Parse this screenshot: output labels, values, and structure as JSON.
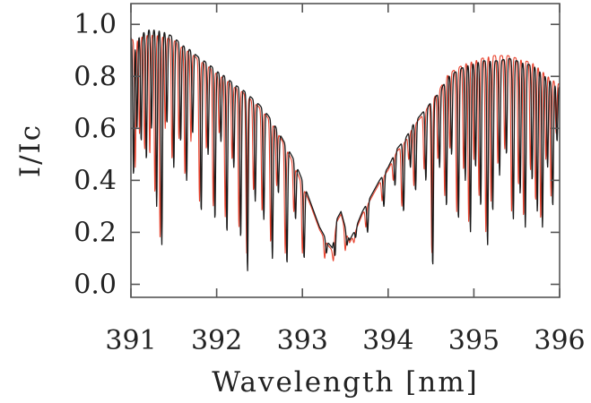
{
  "chart_data": {
    "type": "line",
    "title": "",
    "xlabel": "Wavelength [nm]",
    "ylabel": "I/Ic",
    "xlim": [
      391,
      396
    ],
    "ylim": [
      -0.05,
      1.08
    ],
    "x_ticks": [
      "391",
      "392",
      "393",
      "394",
      "395",
      "396"
    ],
    "y_ticks": [
      "0.0",
      "0.2",
      "0.4",
      "0.6",
      "0.8",
      "1.0"
    ],
    "grid": false,
    "legend": "none",
    "series": [
      {
        "color": "#1a1a1a",
        "envelope": [
          [
            391.0,
            0.95
          ],
          [
            391.1,
            0.96
          ],
          [
            391.2,
            0.98
          ],
          [
            391.3,
            0.98
          ],
          [
            391.4,
            0.97
          ],
          [
            391.5,
            0.95
          ],
          [
            391.6,
            0.92
          ],
          [
            391.7,
            0.9
          ],
          [
            391.8,
            0.87
          ],
          [
            391.9,
            0.85
          ],
          [
            392.0,
            0.82
          ],
          [
            392.1,
            0.8
          ],
          [
            392.2,
            0.77
          ],
          [
            392.3,
            0.75
          ],
          [
            392.4,
            0.72
          ],
          [
            392.5,
            0.69
          ],
          [
            392.6,
            0.65
          ],
          [
            392.7,
            0.6
          ],
          [
            392.8,
            0.54
          ],
          [
            392.9,
            0.48
          ],
          [
            393.0,
            0.4
          ],
          [
            393.1,
            0.31
          ],
          [
            393.2,
            0.22
          ],
          [
            393.3,
            0.16
          ],
          [
            393.35,
            0.14
          ],
          [
            393.4,
            0.25
          ],
          [
            393.45,
            0.28
          ],
          [
            393.5,
            0.22
          ],
          [
            393.55,
            0.17
          ],
          [
            393.6,
            0.2
          ],
          [
            393.7,
            0.28
          ],
          [
            393.8,
            0.34
          ],
          [
            393.9,
            0.4
          ],
          [
            394.0,
            0.45
          ],
          [
            394.1,
            0.52
          ],
          [
            394.2,
            0.56
          ],
          [
            394.3,
            0.62
          ],
          [
            394.4,
            0.66
          ],
          [
            394.5,
            0.7
          ],
          [
            394.6,
            0.74
          ],
          [
            394.7,
            0.8
          ],
          [
            394.8,
            0.82
          ],
          [
            394.9,
            0.84
          ],
          [
            395.0,
            0.85
          ],
          [
            395.1,
            0.86
          ],
          [
            395.2,
            0.86
          ],
          [
            395.3,
            0.86
          ],
          [
            395.4,
            0.87
          ],
          [
            395.5,
            0.86
          ],
          [
            395.6,
            0.85
          ],
          [
            395.7,
            0.84
          ],
          [
            395.8,
            0.81
          ],
          [
            395.9,
            0.78
          ],
          [
            396.0,
            0.76
          ]
        ],
        "absorption_lines": [
          [
            391.03,
            0.42
          ],
          [
            391.07,
            0.6
          ],
          [
            391.12,
            0.55
          ],
          [
            391.18,
            0.48
          ],
          [
            391.24,
            0.6
          ],
          [
            391.3,
            0.3
          ],
          [
            391.36,
            0.15
          ],
          [
            391.42,
            0.62
          ],
          [
            391.5,
            0.45
          ],
          [
            391.58,
            0.55
          ],
          [
            391.65,
            0.4
          ],
          [
            391.72,
            0.58
          ],
          [
            391.82,
            0.28
          ],
          [
            391.9,
            0.5
          ],
          [
            391.98,
            0.25
          ],
          [
            392.05,
            0.55
          ],
          [
            392.12,
            0.2
          ],
          [
            392.2,
            0.45
          ],
          [
            392.28,
            0.18
          ],
          [
            392.36,
            0.05
          ],
          [
            392.45,
            0.32
          ],
          [
            392.55,
            0.25
          ],
          [
            392.65,
            0.1
          ],
          [
            392.72,
            0.35
          ],
          [
            392.82,
            0.08
          ],
          [
            392.92,
            0.25
          ],
          [
            393.02,
            0.1
          ],
          [
            393.28,
            0.12
          ],
          [
            393.38,
            0.11
          ],
          [
            393.52,
            0.15
          ],
          [
            393.62,
            0.18
          ],
          [
            393.76,
            0.2
          ],
          [
            393.95,
            0.3
          ],
          [
            394.08,
            0.38
          ],
          [
            394.18,
            0.28
          ],
          [
            394.26,
            0.45
          ],
          [
            394.32,
            0.36
          ],
          [
            394.44,
            0.4
          ],
          [
            394.52,
            0.07
          ],
          [
            394.6,
            0.45
          ],
          [
            394.68,
            0.3
          ],
          [
            394.74,
            0.5
          ],
          [
            394.82,
            0.25
          ],
          [
            394.9,
            0.4
          ],
          [
            394.96,
            0.2
          ],
          [
            395.02,
            0.45
          ],
          [
            395.08,
            0.3
          ],
          [
            395.16,
            0.15
          ],
          [
            395.22,
            0.28
          ],
          [
            395.3,
            0.42
          ],
          [
            395.38,
            0.5
          ],
          [
            395.46,
            0.25
          ],
          [
            395.54,
            0.35
          ],
          [
            395.6,
            0.22
          ],
          [
            395.68,
            0.4
          ],
          [
            395.74,
            0.28
          ],
          [
            395.8,
            0.22
          ],
          [
            395.86,
            0.45
          ],
          [
            395.92,
            0.3
          ],
          [
            395.97,
            0.55
          ]
        ]
      },
      {
        "color": "#e8412c",
        "envelope": [
          [
            391.0,
            0.94
          ],
          [
            391.1,
            0.95
          ],
          [
            391.2,
            0.96
          ],
          [
            391.3,
            0.96
          ],
          [
            391.4,
            0.95
          ],
          [
            391.5,
            0.94
          ],
          [
            391.6,
            0.91
          ],
          [
            391.7,
            0.89
          ],
          [
            391.8,
            0.86
          ],
          [
            391.9,
            0.84
          ],
          [
            392.0,
            0.81
          ],
          [
            392.1,
            0.79
          ],
          [
            392.2,
            0.76
          ],
          [
            392.3,
            0.74
          ],
          [
            392.4,
            0.71
          ],
          [
            392.5,
            0.68
          ],
          [
            392.6,
            0.64
          ],
          [
            392.7,
            0.59
          ],
          [
            392.8,
            0.53
          ],
          [
            392.9,
            0.46
          ],
          [
            393.0,
            0.38
          ],
          [
            393.1,
            0.3
          ],
          [
            393.2,
            0.21
          ],
          [
            393.3,
            0.15
          ],
          [
            393.35,
            0.13
          ],
          [
            393.4,
            0.24
          ],
          [
            393.45,
            0.27
          ],
          [
            393.5,
            0.21
          ],
          [
            393.55,
            0.16
          ],
          [
            393.6,
            0.19
          ],
          [
            393.7,
            0.27
          ],
          [
            393.8,
            0.33
          ],
          [
            393.9,
            0.39
          ],
          [
            394.0,
            0.44
          ],
          [
            394.1,
            0.51
          ],
          [
            394.2,
            0.55
          ],
          [
            394.3,
            0.61
          ],
          [
            394.4,
            0.65
          ],
          [
            394.5,
            0.7
          ],
          [
            394.6,
            0.75
          ],
          [
            394.7,
            0.81
          ],
          [
            394.8,
            0.83
          ],
          [
            394.9,
            0.85
          ],
          [
            395.0,
            0.86
          ],
          [
            395.1,
            0.87
          ],
          [
            395.2,
            0.88
          ],
          [
            395.3,
            0.88
          ],
          [
            395.4,
            0.88
          ],
          [
            395.5,
            0.87
          ],
          [
            395.6,
            0.86
          ],
          [
            395.7,
            0.85
          ],
          [
            395.8,
            0.82
          ],
          [
            395.9,
            0.79
          ],
          [
            396.0,
            0.77
          ]
        ],
        "absorption_lines": [
          [
            391.05,
            0.45
          ],
          [
            391.1,
            0.58
          ],
          [
            391.16,
            0.52
          ],
          [
            391.22,
            0.5
          ],
          [
            391.28,
            0.35
          ],
          [
            391.34,
            0.18
          ],
          [
            391.4,
            0.6
          ],
          [
            391.48,
            0.48
          ],
          [
            391.56,
            0.56
          ],
          [
            391.63,
            0.42
          ],
          [
            391.7,
            0.55
          ],
          [
            391.8,
            0.32
          ],
          [
            391.88,
            0.52
          ],
          [
            391.96,
            0.3
          ],
          [
            392.03,
            0.58
          ],
          [
            392.1,
            0.26
          ],
          [
            392.18,
            0.48
          ],
          [
            392.26,
            0.22
          ],
          [
            392.35,
            0.12
          ],
          [
            392.43,
            0.36
          ],
          [
            392.53,
            0.28
          ],
          [
            392.63,
            0.16
          ],
          [
            392.7,
            0.38
          ],
          [
            392.8,
            0.12
          ],
          [
            392.9,
            0.28
          ],
          [
            393.0,
            0.12
          ],
          [
            393.26,
            0.1
          ],
          [
            393.36,
            0.09
          ],
          [
            393.5,
            0.13
          ],
          [
            393.6,
            0.16
          ],
          [
            393.74,
            0.22
          ],
          [
            393.93,
            0.32
          ],
          [
            394.06,
            0.4
          ],
          [
            394.16,
            0.3
          ],
          [
            394.24,
            0.48
          ],
          [
            394.3,
            0.38
          ],
          [
            394.42,
            0.44
          ],
          [
            394.51,
            0.12
          ],
          [
            394.58,
            0.48
          ],
          [
            394.66,
            0.34
          ],
          [
            394.72,
            0.52
          ],
          [
            394.8,
            0.28
          ],
          [
            394.88,
            0.44
          ],
          [
            394.94,
            0.24
          ],
          [
            395.0,
            0.48
          ],
          [
            395.06,
            0.34
          ],
          [
            395.14,
            0.2
          ],
          [
            395.2,
            0.32
          ],
          [
            395.28,
            0.46
          ],
          [
            395.36,
            0.52
          ],
          [
            395.44,
            0.28
          ],
          [
            395.52,
            0.38
          ],
          [
            395.58,
            0.26
          ],
          [
            395.66,
            0.44
          ],
          [
            395.72,
            0.32
          ],
          [
            395.78,
            0.25
          ],
          [
            395.84,
            0.48
          ],
          [
            395.9,
            0.34
          ],
          [
            395.96,
            0.58
          ]
        ]
      }
    ]
  }
}
